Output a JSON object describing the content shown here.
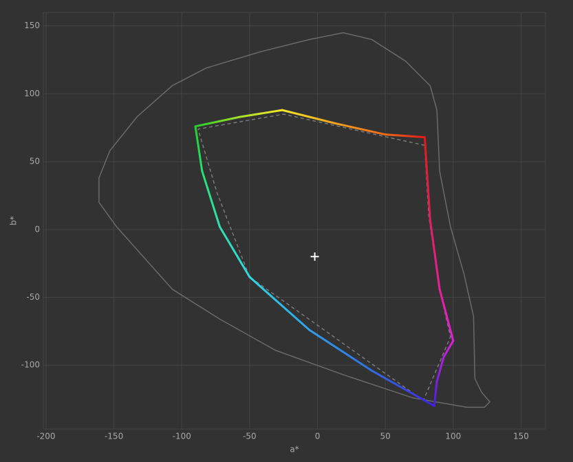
{
  "chart_data": {
    "type": "line",
    "xlabel": "a*",
    "ylabel": "b*",
    "xlim": [
      -202,
      168
    ],
    "ylim": [
      -147,
      160
    ],
    "xticks": [
      -200,
      -150,
      -100,
      -50,
      0,
      50,
      100,
      150
    ],
    "yticks": [
      -100,
      -50,
      0,
      50,
      100,
      150
    ],
    "grid": true,
    "series": [
      {
        "color": "#6a6a6a",
        "closed": true,
        "dash": false,
        "width": 1.5,
        "x": [
          19,
          40,
          65,
          83,
          88,
          90,
          98,
          108,
          115,
          116,
          121,
          127,
          123,
          110,
          70,
          19,
          -31,
          -72,
          -107,
          -148,
          -161,
          -161,
          -153,
          -133,
          -107,
          -82,
          -42,
          -6
        ],
        "y": [
          145,
          140,
          124,
          106,
          88,
          43,
          2,
          -33,
          -64,
          -110,
          -120,
          -127,
          -131,
          -131,
          -124,
          -107,
          -89,
          -66,
          -44,
          2,
          20,
          38,
          58,
          83,
          106,
          119,
          131,
          140
        ]
      },
      {
        "color": "#7a7a7a",
        "closed": true,
        "dash": true,
        "width": 1.5,
        "x": [
          79,
          -25,
          -88,
          -74,
          -50,
          78,
          98,
          90,
          82
        ],
        "y": [
          62,
          85,
          74,
          27,
          -35,
          -126,
          -79,
          -44,
          10
        ]
      },
      {
        "colors": [
          "#e31a1a",
          "#ee6a1a",
          "#f0a020",
          "#f4e62a",
          "#a8e02a",
          "#22d02a",
          "#28e070",
          "#30e0b0",
          "#30d8e0",
          "#30a0e8",
          "#3070e0",
          "#4020e0",
          "#8020e0",
          "#b020e0",
          "#e020d8",
          "#e8209a",
          "#e02060"
        ],
        "closed": true,
        "width": 3,
        "x": [
          79,
          50,
          14,
          -26,
          -57,
          -90,
          -85,
          -72,
          -50,
          -6,
          40,
          86,
          88,
          93,
          100,
          90,
          83
        ],
        "y": [
          68,
          70,
          78,
          88,
          83,
          76,
          43,
          2,
          -35,
          -74,
          -104,
          -130,
          -112,
          -94,
          -82,
          -44,
          7
        ]
      }
    ],
    "marker": {
      "x": -2,
      "y": -20,
      "color": "#ffffff"
    }
  }
}
